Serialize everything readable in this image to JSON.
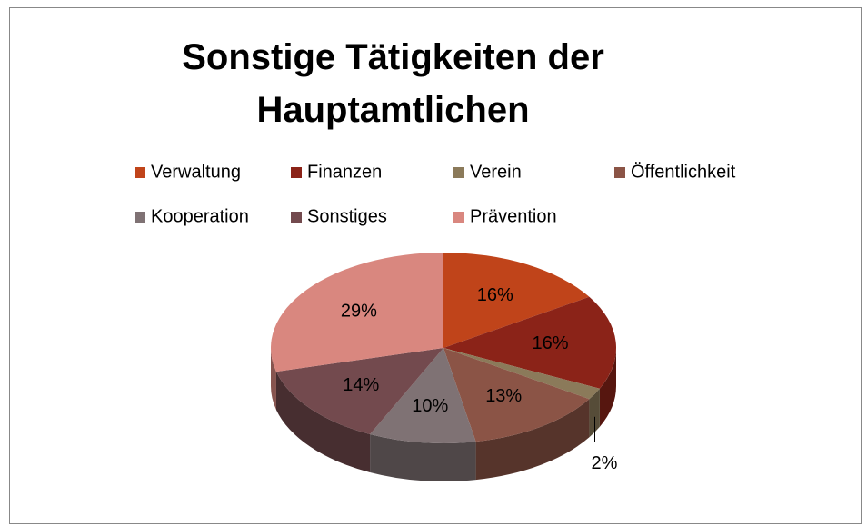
{
  "chart_data": {
    "type": "pie3d",
    "title": "Sonstige Tätigkeiten der Hauptamtlichen",
    "categories": [
      "Verwaltung",
      "Finanzen",
      "Verein",
      "Öffentlichkeit",
      "Kooperation",
      "Sonstiges",
      "Prävention"
    ],
    "values": [
      16,
      16,
      2,
      13,
      10,
      14,
      29
    ],
    "value_labels": [
      "16%",
      "16%",
      "2%",
      "13%",
      "10%",
      "14%",
      "29%"
    ],
    "colors": [
      "#c0441a",
      "#8b2318",
      "#8b7a5a",
      "#8b5446",
      "#7f7274",
      "#734a4e",
      "#d9877f"
    ],
    "legend": "top"
  }
}
